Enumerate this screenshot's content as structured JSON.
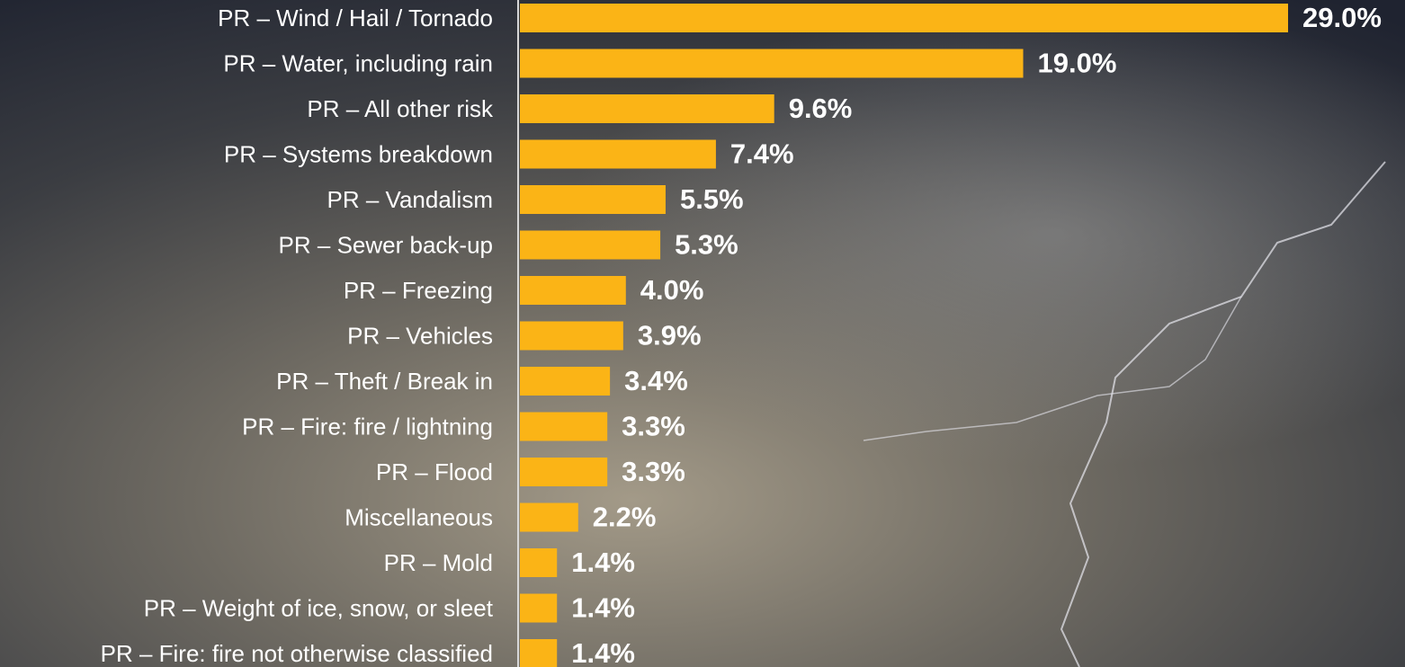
{
  "chart_data": {
    "type": "bar",
    "orientation": "horizontal",
    "categories": [
      "PR – Wind / Hail / Tornado",
      "PR – Water, including rain",
      "PR – All other risk",
      "PR – Systems breakdown",
      "PR – Vandalism",
      "PR – Sewer back-up",
      "PR – Freezing",
      "PR – Vehicles",
      "PR – Theft / Break in",
      "PR – Fire: fire / lightning",
      "PR – Flood",
      "Miscellaneous",
      "PR – Mold",
      "PR – Weight of ice, snow, or sleet",
      "PR – Fire: fire not otherwise classified"
    ],
    "values": [
      29.0,
      19.0,
      9.6,
      7.4,
      5.5,
      5.3,
      4.0,
      3.9,
      3.4,
      3.3,
      3.3,
      2.2,
      1.4,
      1.4,
      1.4
    ],
    "value_labels": [
      "29.0%",
      "19.0%",
      "9.6%",
      "7.4%",
      "5.5%",
      "5.3%",
      "4.0%",
      "3.9%",
      "3.4%",
      "3.3%",
      "3.3%",
      "2.2%",
      "1.4%",
      "1.4%",
      "1.4%"
    ],
    "color": "#fbb416"
  }
}
